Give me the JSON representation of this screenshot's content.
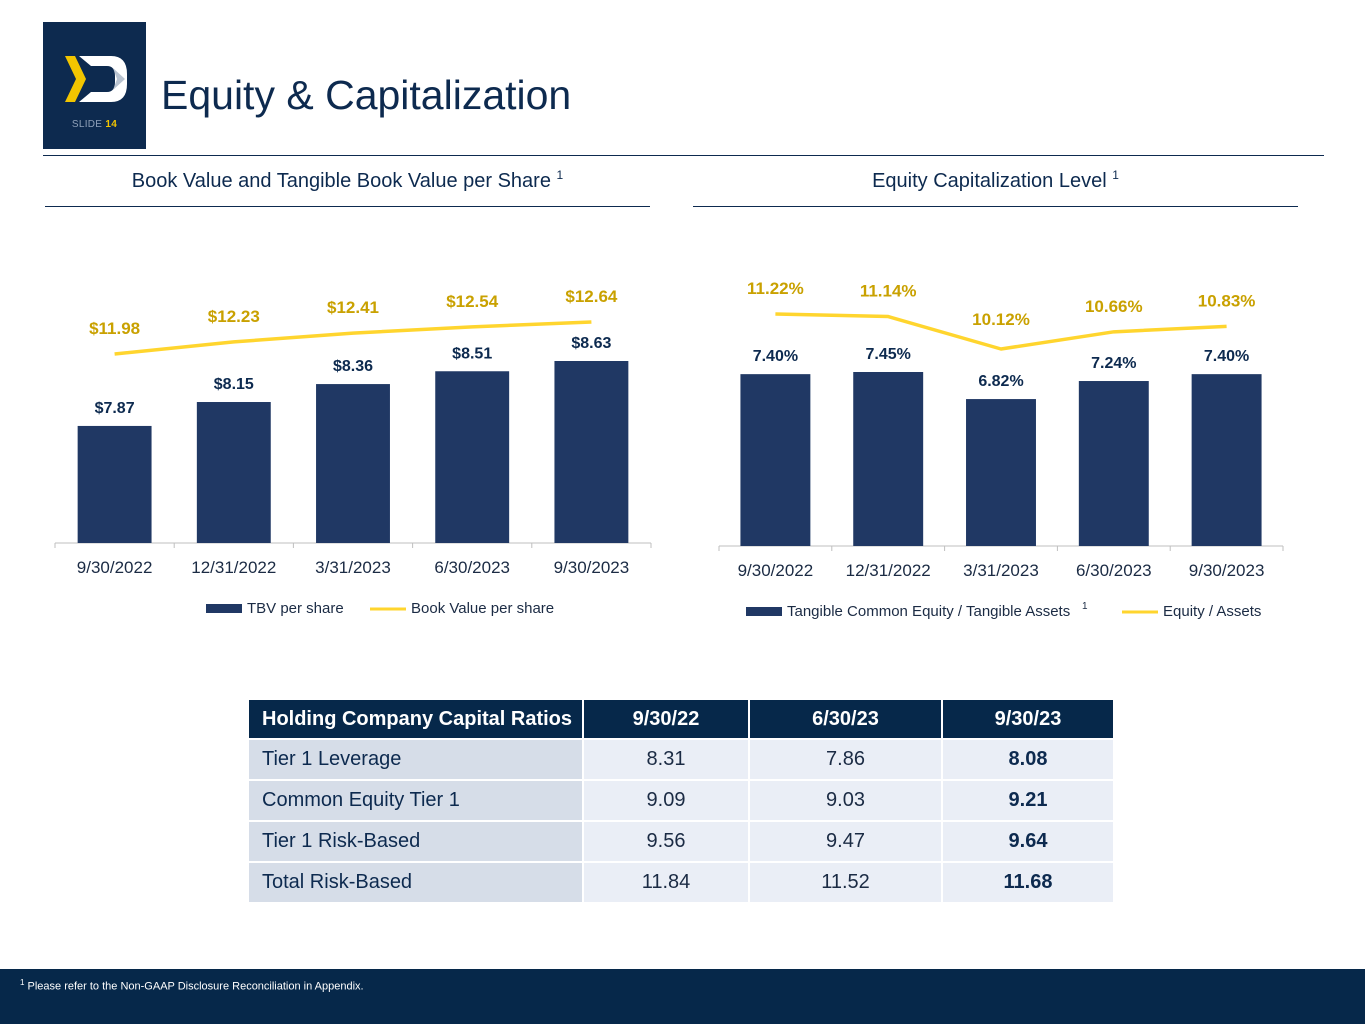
{
  "header": {
    "title": "Equity & Capitalization",
    "slide_label": "SLIDE",
    "slide_number": "14",
    "brand_colors": {
      "navy": "#0d2a4f",
      "gold": "#f2c500",
      "grey": "#b9c3d0"
    }
  },
  "left_chart": {
    "title": "Book Value and Tangible Book Value per Share",
    "footnote_mark": "1"
  },
  "right_chart": {
    "title": "Equity Capitalization Level",
    "footnote_mark": "1"
  },
  "chart_data": [
    {
      "type": "bar",
      "title": "Book Value and Tangible Book Value per Share",
      "categories": [
        "9/30/2022",
        "12/31/2022",
        "3/31/2023",
        "6/30/2023",
        "9/30/2023"
      ],
      "series": [
        {
          "name": "TBV per share",
          "kind": "bar",
          "values": [
            7.87,
            8.15,
            8.36,
            8.51,
            8.63
          ],
          "labels": [
            "$7.87",
            "$8.15",
            "$8.36",
            "$8.51",
            "$8.63"
          ],
          "color": "#203864"
        },
        {
          "name": "Book Value per share",
          "kind": "line",
          "values": [
            11.98,
            12.23,
            12.41,
            12.54,
            12.64
          ],
          "labels": [
            "$11.98",
            "$12.23",
            "$12.41",
            "$12.54",
            "$12.64"
          ],
          "color": "#ffd52e",
          "label_color": "#c9a100"
        }
      ],
      "legend_position": "bottom"
    },
    {
      "type": "bar",
      "title": "Equity Capitalization Level",
      "categories": [
        "9/30/2022",
        "12/31/2022",
        "3/31/2023",
        "6/30/2023",
        "9/30/2023"
      ],
      "series": [
        {
          "name": "Tangible Common Equity / Tangible Assets",
          "legend_sup": "1",
          "kind": "bar",
          "values": [
            7.4,
            7.45,
            6.82,
            7.24,
            7.4
          ],
          "labels": [
            "7.40%",
            "7.45%",
            "6.82%",
            "7.24%",
            "7.40%"
          ],
          "color": "#203864"
        },
        {
          "name": "Equity / Assets",
          "kind": "line",
          "values": [
            11.22,
            11.14,
            10.12,
            10.66,
            10.83
          ],
          "labels": [
            "11.22%",
            "11.14%",
            "10.12%",
            "10.66%",
            "10.83%"
          ],
          "color": "#ffd52e",
          "label_color": "#c9a100"
        }
      ],
      "legend_position": "bottom"
    }
  ],
  "table": {
    "headers": [
      "Holding Company Capital Ratios",
      "9/30/22",
      "6/30/23",
      "9/30/23"
    ],
    "rows": [
      {
        "label": "Tier 1 Leverage",
        "values": [
          "8.31",
          "7.86",
          "8.08"
        ]
      },
      {
        "label": "Common Equity Tier 1",
        "values": [
          "9.09",
          "9.03",
          "9.21"
        ]
      },
      {
        "label": "Tier 1 Risk-Based",
        "values": [
          "9.56",
          "9.47",
          "9.64"
        ]
      },
      {
        "label": "Total Risk-Based",
        "values": [
          "11.84",
          "11.52",
          "11.68"
        ]
      }
    ]
  },
  "footer": {
    "footnote_mark": "1",
    "footnote": "Please refer to the Non-GAAP Disclosure Reconciliation in Appendix."
  }
}
